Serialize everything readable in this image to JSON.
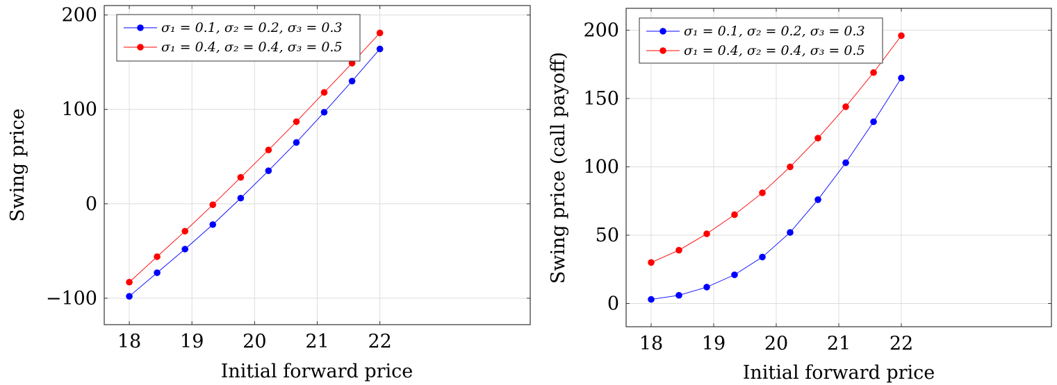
{
  "chart_data": [
    {
      "type": "line",
      "title": "",
      "xlabel": "Initial forward price",
      "ylabel": "Swing price",
      "xlim": [
        17.6,
        24.4
      ],
      "ylim": [
        -128,
        210
      ],
      "xticks": [
        18,
        19,
        20,
        21,
        22
      ],
      "yticks": [
        -100,
        0,
        100,
        200
      ],
      "ytick_labels": [
        "−100",
        "0",
        "100",
        "200"
      ],
      "grid": true,
      "legend_position": "top-left",
      "x": [
        18,
        18.444,
        18.889,
        19.333,
        19.778,
        20.222,
        20.667,
        21.111,
        21.556,
        22
      ],
      "series": [
        {
          "name": "σ₁ = 0.1, σ₂ = 0.2, σ₃ = 0.3",
          "color": "#0000ff",
          "values": [
            -98,
            -73,
            -48,
            -22,
            6,
            35,
            65,
            97,
            130,
            164
          ]
        },
        {
          "name": "σ₁ = 0.4, σ₂ = 0.4, σ₃ = 0.5",
          "color": "#ff0000",
          "values": [
            -83,
            -56,
            -29,
            -1,
            28,
            57,
            87,
            118,
            149,
            181
          ]
        }
      ]
    },
    {
      "type": "line",
      "title": "",
      "xlabel": "Initial forward price",
      "ylabel": "Swing price (call payoff)",
      "xlim": [
        17.6,
        24.4
      ],
      "ylim": [
        -17,
        216
      ],
      "xticks": [
        18,
        19,
        20,
        21,
        22
      ],
      "yticks": [
        0,
        50,
        100,
        150,
        200
      ],
      "ytick_labels": [
        "0",
        "50",
        "100",
        "150",
        "200"
      ],
      "grid": true,
      "legend_position": "top-left",
      "x": [
        18,
        18.444,
        18.889,
        19.333,
        19.778,
        20.222,
        20.667,
        21.111,
        21.556,
        22
      ],
      "series": [
        {
          "name": "σ₁ = 0.1, σ₂ = 0.2, σ₃ = 0.3",
          "color": "#0000ff",
          "values": [
            3,
            6,
            12,
            21,
            34,
            52,
            76,
            103,
            133,
            165
          ]
        },
        {
          "name": "σ₁ = 0.4, σ₂ = 0.4, σ₃ = 0.5",
          "color": "#ff0000",
          "values": [
            30,
            39,
            51,
            65,
            81,
            100,
            121,
            144,
            169,
            196
          ]
        }
      ]
    }
  ]
}
